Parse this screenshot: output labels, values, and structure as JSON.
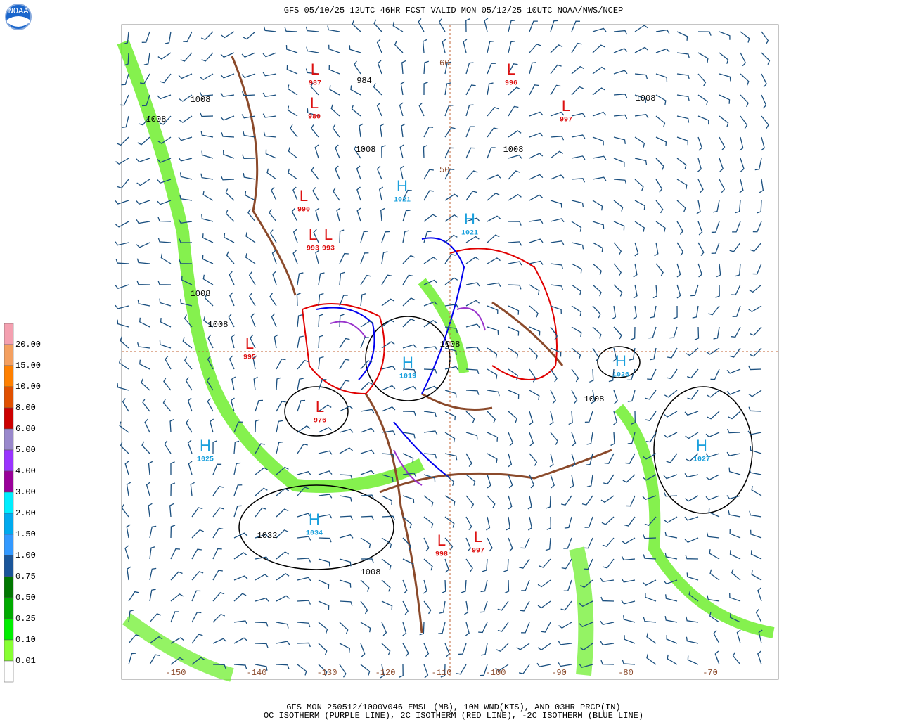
{
  "header": {
    "title": "GFS 05/10/25 12UTC 46HR FCST VALID MON 05/12/25 10UTC NOAA/NWS/NCEP",
    "logo": "NOAA"
  },
  "legend": {
    "labels": [
      "20.00",
      "15.00",
      "10.00",
      "8.00",
      "6.00",
      "5.00",
      "4.00",
      "3.00",
      "2.00",
      "1.50",
      "1.00",
      "0.75",
      "0.50",
      "0.25",
      "0.10",
      "0.01"
    ],
    "colors": [
      "#f4a0b0",
      "#f4a060",
      "#ff8000",
      "#e05000",
      "#cc0000",
      "#9988cc",
      "#9933ff",
      "#990099",
      "#00eeff",
      "#00aaee",
      "#3399ff",
      "#1a5599",
      "#007700",
      "#00aa00",
      "#00ee00",
      "#88ff33",
      "#ffffff"
    ]
  },
  "map": {
    "longitudes": [
      "-150",
      "-140",
      "-130",
      "-120",
      "-110",
      "-100",
      "-90",
      "-80",
      "-70"
    ],
    "latitudes": [
      "60",
      "50"
    ],
    "centers": [
      {
        "type": "L",
        "value": "987"
      },
      {
        "type": "L",
        "value": "980"
      },
      {
        "type": "L",
        "value": "996"
      },
      {
        "type": "L",
        "value": "997"
      },
      {
        "type": "L",
        "value": "990"
      },
      {
        "type": "L",
        "value": "993"
      },
      {
        "type": "L",
        "value": "993"
      },
      {
        "type": "H",
        "value": "1021"
      },
      {
        "type": "H",
        "value": "1021"
      },
      {
        "type": "H",
        "value": "1026"
      },
      {
        "type": "H",
        "value": "1019"
      },
      {
        "type": "H",
        "value": "1025"
      },
      {
        "type": "H",
        "value": "1027"
      },
      {
        "type": "H",
        "value": "1034"
      },
      {
        "type": "L",
        "value": "998"
      },
      {
        "type": "L",
        "value": "997"
      },
      {
        "type": "L",
        "value": "976"
      },
      {
        "type": "L",
        "value": "995"
      }
    ],
    "isobar_labels": [
      "1008",
      "984",
      "1008",
      "1008",
      "1008",
      "1008",
      "1008",
      "1008",
      "1032",
      "1008",
      "1008",
      "1008"
    ]
  },
  "footer": {
    "lines": [
      "GFS MON 250512/1000V046 EMSL (MB), 10M WND(KTS), AND 03HR PRCP(IN)",
      "OC ISOTHERM (PURPLE LINE), 2C ISOTHERM (RED LINE), -2C ISOTHERM (BLUE LINE)"
    ]
  }
}
